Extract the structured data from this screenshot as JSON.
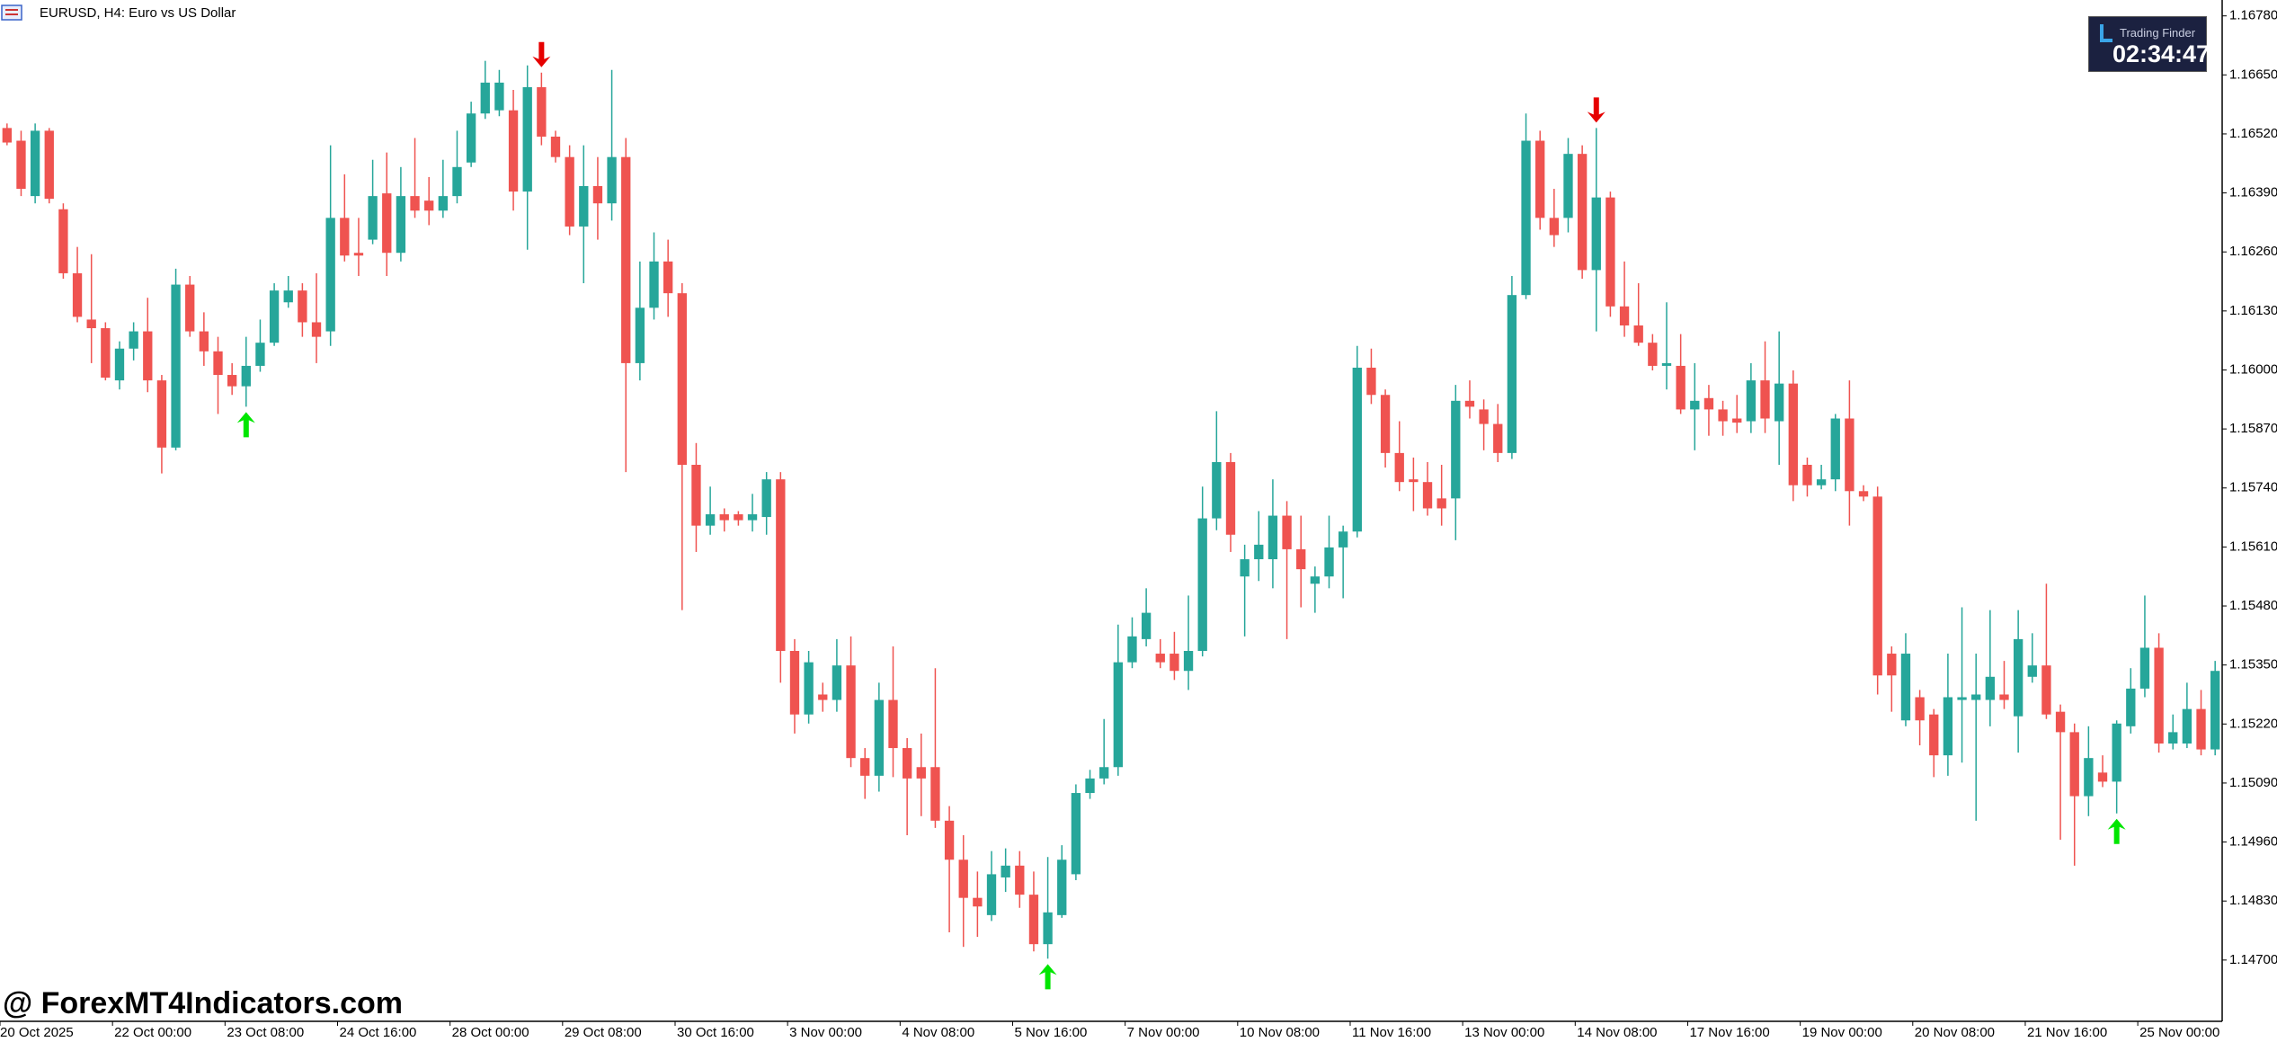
{
  "chart_data": {
    "type": "candlestick",
    "title": "EURUSD, H4:  Euro vs US Dollar",
    "watermark": "@ ForexMT4Indicators.com",
    "logo": {
      "brand": "Trading Finder",
      "timer": "02:34:47"
    },
    "up_color": "#26a69a",
    "down_color": "#ef5350",
    "signal_up_color": "#00e600",
    "signal_down_color": "#e60000",
    "ylim": [
      1.14565,
      1.16815
    ],
    "yticks": [
      {
        "value": 1.1678,
        "label": "1.16780"
      },
      {
        "value": 1.1665,
        "label": "1.16650"
      },
      {
        "value": 1.1652,
        "label": "1.16520"
      },
      {
        "value": 1.1639,
        "label": "1.16390"
      },
      {
        "value": 1.1626,
        "label": "1.16260"
      },
      {
        "value": 1.1613,
        "label": "1.16130"
      },
      {
        "value": 1.16,
        "label": "1.16000"
      },
      {
        "value": 1.1587,
        "label": "1.15870"
      },
      {
        "value": 1.1574,
        "label": "1.15740"
      },
      {
        "value": 1.1561,
        "label": "1.15610"
      },
      {
        "value": 1.1548,
        "label": "1.15480"
      },
      {
        "value": 1.1535,
        "label": "1.15350"
      },
      {
        "value": 1.1522,
        "label": "1.15220"
      },
      {
        "value": 1.1509,
        "label": "1.15090"
      },
      {
        "value": 1.1496,
        "label": "1.14960"
      },
      {
        "value": 1.1483,
        "label": "1.14830"
      },
      {
        "value": 1.147,
        "label": "1.14700"
      }
    ],
    "categories": [
      "20 Oct 2025",
      null,
      null,
      null,
      null,
      null,
      null,
      null,
      "22 Oct 00:00",
      null,
      null,
      null,
      null,
      null,
      null,
      null,
      "23 Oct 08:00",
      null,
      null,
      null,
      null,
      null,
      null,
      null,
      "24 Oct 16:00",
      null,
      null,
      null,
      null,
      null,
      null,
      null,
      "28 Oct 00:00",
      null,
      null,
      null,
      null,
      null,
      null,
      null,
      "29 Oct 08:00",
      null,
      null,
      null,
      null,
      null,
      null,
      null,
      "30 Oct 16:00",
      null,
      null,
      null,
      null,
      null,
      null,
      null,
      "3 Nov 00:00",
      null,
      null,
      null,
      null,
      null,
      null,
      null,
      "4 Nov 08:00",
      null,
      null,
      null,
      null,
      null,
      null,
      null,
      "5 Nov 16:00",
      null,
      null,
      null,
      null,
      null,
      null,
      null,
      "7 Nov 00:00",
      null,
      null,
      null,
      null,
      null,
      null,
      null,
      "10 Nov 08:00",
      null,
      null,
      null,
      null,
      null,
      null,
      null,
      "11 Nov 16:00",
      null,
      null,
      null,
      null,
      null,
      null,
      null,
      "13 Nov 00:00",
      null,
      null,
      null,
      null,
      null,
      null,
      null,
      "14 Nov 08:00",
      null,
      null,
      null,
      null,
      null,
      null,
      null,
      "17 Nov 16:00",
      null,
      null,
      null,
      null,
      null,
      null,
      null,
      "19 Nov 00:00",
      null,
      null,
      null,
      null,
      null,
      null,
      null,
      "20 Nov 08:00",
      null,
      null,
      null,
      null,
      null,
      null,
      null,
      "21 Nov 16:00",
      null,
      null,
      null,
      null,
      null,
      null,
      null,
      "25 Nov 00:00",
      null,
      null,
      null,
      null,
      null
    ],
    "open": [
      1.16533,
      1.16505,
      1.16383,
      1.16527,
      1.16354,
      1.16213,
      1.16111,
      1.16092,
      1.15977,
      1.16047,
      1.16085,
      1.15977,
      1.15829,
      1.16188,
      1.16085,
      1.16041,
      1.15989,
      1.15964,
      1.16009,
      1.1606,
      1.16149,
      1.16175,
      1.16105,
      1.16085,
      1.16335,
      1.16258,
      1.16287,
      1.16389,
      1.16258,
      1.16383,
      1.16373,
      1.16351,
      1.16383,
      1.16457,
      1.16565,
      1.16572,
      1.16572,
      1.16393,
      1.16623,
      1.16514,
      1.16469,
      1.16316,
      1.16405,
      1.16367,
      1.16469,
      1.16015,
      1.16137,
      1.16239,
      1.16169,
      1.15791,
      1.15657,
      1.15682,
      1.15682,
      1.15669,
      1.15676,
      1.15759,
      1.15381,
      1.15241,
      1.15285,
      1.15273,
      1.15349,
      1.15145,
      1.15106,
      1.15273,
      1.15167,
      1.15125,
      1.15125,
      1.15007,
      1.14921,
      1.14837,
      1.14799,
      1.14882,
      1.14908,
      1.14844,
      1.14735,
      1.14799,
      1.14889,
      1.15068,
      1.151,
      1.15125,
      1.15356,
      1.15407,
      1.15375,
      1.15375,
      1.15337,
      1.15381,
      1.15673,
      1.15797,
      1.15545,
      1.15583,
      1.15583,
      1.15679,
      1.15605,
      1.15529,
      1.15545,
      1.15609,
      1.15644,
      1.16005,
      1.15945,
      1.15817,
      1.15759,
      1.15753,
      1.15717,
      1.15717,
      1.15932,
      1.15913,
      1.15881,
      1.15817,
      1.16165,
      1.16505,
      1.16335,
      1.16335,
      1.16476,
      1.1622,
      1.1638,
      1.1614,
      1.16098,
      1.1606,
      1.16009,
      1.16009,
      1.15913,
      1.15938,
      1.15913,
      1.15893,
      1.15887,
      1.15977,
      1.15887,
      1.1597,
      1.15791,
      1.15746,
      1.15759,
      1.15893,
      1.15733,
      1.15721,
      1.15375,
      1.15228,
      1.15279,
      1.15241,
      1.15151,
      1.15273,
      1.15273,
      1.15273,
      1.15285,
      1.15237,
      1.15324,
      1.15349,
      1.15247,
      1.15202,
      1.15061,
      1.15113,
      1.15093,
      1.15215,
      1.15298,
      1.15388,
      1.15177,
      1.15177,
      1.15253,
      1.15164
    ],
    "high": [
      1.16543,
      1.16527,
      1.16543,
      1.16533,
      1.16367,
      1.16271,
      1.16255,
      1.16105,
      1.16063,
      1.16105,
      1.16159,
      1.15989,
      1.16223,
      1.16207,
      1.16127,
      1.16073,
      1.16015,
      1.16073,
      1.16111,
      1.16191,
      1.16207,
      1.16191,
      1.16213,
      1.16495,
      1.16431,
      1.16335,
      1.16463,
      1.16479,
      1.16447,
      1.16511,
      1.16425,
      1.16463,
      1.16527,
      1.16591,
      1.16681,
      1.16661,
      1.16617,
      1.16671,
      1.16655,
      1.16527,
      1.16495,
      1.16495,
      1.16469,
      1.16661,
      1.16511,
      1.16239,
      1.16303,
      1.16287,
      1.16191,
      1.15839,
      1.15743,
      1.15695,
      1.15689,
      1.15727,
      1.15775,
      1.15775,
      1.15407,
      1.15381,
      1.15311,
      1.15407,
      1.15413,
      1.15167,
      1.15311,
      1.15391,
      1.15189,
      1.15199,
      1.15343,
      1.15039,
      1.14975,
      1.14895,
      1.1494,
      1.14946,
      1.1494,
      1.14895,
      1.14927,
      1.14953,
      1.15087,
      1.15119,
      1.15231,
      1.15439,
      1.15455,
      1.15519,
      1.15407,
      1.15423,
      1.15503,
      1.15743,
      1.15909,
      1.15817,
      1.15615,
      1.15689,
      1.15759,
      1.15711,
      1.15679,
      1.15567,
      1.15679,
      1.15657,
      1.16053,
      1.16047,
      1.15957,
      1.15887,
      1.15807,
      1.15797,
      1.15791,
      1.15967,
      1.15977,
      1.15935,
      1.15925,
      1.16207,
      1.16565,
      1.16527,
      1.16399,
      1.16511,
      1.16495,
      1.16533,
      1.16393,
      1.16239,
      1.16191,
      1.16079,
      1.16149,
      1.16079,
      1.16015,
      1.15967,
      1.15932,
      1.15945,
      1.16015,
      1.16063,
      1.16085,
      1.15999,
      1.15807,
      1.15791,
      1.15903,
      1.15977,
      1.15746,
      1.15743,
      1.15391,
      1.1542,
      1.15295,
      1.15253,
      1.15375,
      1.15477,
      1.15375,
      1.15471,
      1.15359,
      1.15471,
      1.1542,
      1.15529,
      1.15263,
      1.15221,
      1.15215,
      1.15151,
      1.15228,
      1.15343,
      1.15503,
      1.1542,
      1.15241,
      1.15311,
      1.15295,
      1.15359
    ],
    "low": [
      1.16495,
      1.16383,
      1.16367,
      1.16367,
      1.16201,
      1.16105,
      1.16015,
      1.15977,
      1.15957,
      1.16021,
      1.15951,
      1.15772,
      1.15823,
      1.16073,
      1.16009,
      1.15903,
      1.15945,
      1.15919,
      1.15996,
      1.16053,
      1.16137,
      1.16073,
      1.16015,
      1.16053,
      1.16239,
      1.16207,
      1.16277,
      1.16207,
      1.16239,
      1.16335,
      1.16319,
      1.16335,
      1.16367,
      1.16447,
      1.16553,
      1.16559,
      1.16351,
      1.16265,
      1.16495,
      1.16457,
      1.16297,
      1.16191,
      1.16287,
      1.16329,
      1.15775,
      1.15977,
      1.16111,
      1.16117,
      1.15471,
      1.15599,
      1.15637,
      1.15644,
      1.15657,
      1.15644,
      1.15637,
      1.15311,
      1.15199,
      1.15221,
      1.15247,
      1.15247,
      1.15125,
      1.15055,
      1.15071,
      1.15103,
      1.14975,
      1.15017,
      1.14991,
      1.14761,
      1.14729,
      1.14751,
      1.14786,
      1.1485,
      1.14815,
      1.14719,
      1.14703,
      1.14793,
      1.14876,
      1.15055,
      1.15087,
      1.15106,
      1.15343,
      1.15391,
      1.15343,
      1.15317,
      1.15295,
      1.15369,
      1.15647,
      1.15599,
      1.15413,
      1.15535,
      1.15519,
      1.15407,
      1.15477,
      1.15465,
      1.15519,
      1.15497,
      1.15631,
      1.15925,
      1.15785,
      1.15733,
      1.15689,
      1.15679,
      1.15657,
      1.15625,
      1.15893,
      1.15823,
      1.15797,
      1.15804,
      1.16156,
      1.16309,
      1.16271,
      1.16303,
      1.16201,
      1.16085,
      1.16117,
      1.16073,
      1.16053,
      1.15999,
      1.15957,
      1.15903,
      1.15823,
      1.15855,
      1.15855,
      1.15861,
      1.15861,
      1.15861,
      1.15791,
      1.15711,
      1.15721,
      1.15737,
      1.15733,
      1.15657,
      1.15711,
      1.15285,
      1.15247,
      1.15215,
      1.15173,
      1.15103,
      1.15106,
      1.15135,
      1.15007,
      1.15215,
      1.15253,
      1.15157,
      1.15311,
      1.15231,
      1.14965,
      1.14908,
      1.15017,
      1.15081,
      1.15023,
      1.15199,
      1.15279,
      1.15157,
      1.15164,
      1.15167,
      1.15151,
      1.15151
    ],
    "close": [
      1.16501,
      1.16399,
      1.16527,
      1.16377,
      1.16213,
      1.16117,
      1.16092,
      1.15983,
      1.16047,
      1.16085,
      1.15977,
      1.15829,
      1.16188,
      1.16085,
      1.16041,
      1.15989,
      1.15964,
      1.16009,
      1.1606,
      1.16175,
      1.16175,
      1.16105,
      1.16073,
      1.16335,
      1.16252,
      1.16252,
      1.16383,
      1.16258,
      1.16383,
      1.16351,
      1.16351,
      1.16383,
      1.16447,
      1.16565,
      1.16633,
      1.16633,
      1.16393,
      1.16623,
      1.16514,
      1.16469,
      1.16316,
      1.16405,
      1.16367,
      1.16469,
      1.16015,
      1.16137,
      1.16239,
      1.16169,
      1.15791,
      1.15657,
      1.15682,
      1.15669,
      1.15669,
      1.15682,
      1.15759,
      1.15381,
      1.15241,
      1.15356,
      1.15273,
      1.15349,
      1.15145,
      1.15106,
      1.15273,
      1.15167,
      1.151,
      1.151,
      1.15007,
      1.14921,
      1.14837,
      1.14818,
      1.14889,
      1.14908,
      1.14844,
      1.14735,
      1.14805,
      1.14921,
      1.15068,
      1.151,
      1.15125,
      1.15356,
      1.15413,
      1.15465,
      1.15356,
      1.15337,
      1.15381,
      1.15673,
      1.15797,
      1.15637,
      1.15583,
      1.15615,
      1.15679,
      1.15605,
      1.15561,
      1.15545,
      1.15609,
      1.15644,
      1.16005,
      1.15945,
      1.15817,
      1.15753,
      1.15753,
      1.15695,
      1.15695,
      1.15932,
      1.15919,
      1.15881,
      1.15817,
      1.16165,
      1.16505,
      1.16335,
      1.16297,
      1.16476,
      1.1622,
      1.1638,
      1.1614,
      1.16098,
      1.1606,
      1.16009,
      1.16015,
      1.15913,
      1.15932,
      1.15913,
      1.15887,
      1.15884,
      1.15977,
      1.15893,
      1.1597,
      1.15746,
      1.15746,
      1.15759,
      1.15893,
      1.15733,
      1.15721,
      1.15327,
      1.15327,
      1.15375,
      1.15228,
      1.15151,
      1.15279,
      1.15279,
      1.15285,
      1.15324,
      1.15273,
      1.15407,
      1.15349,
      1.15241,
      1.15202,
      1.15061,
      1.15145,
      1.15093,
      1.15221,
      1.15298,
      1.15388,
      1.15177,
      1.15202,
      1.15253,
      1.15164,
      1.15337
    ],
    "signals": {
      "up": [
        17,
        74,
        150
      ],
      "down": [
        38,
        113
      ]
    }
  }
}
